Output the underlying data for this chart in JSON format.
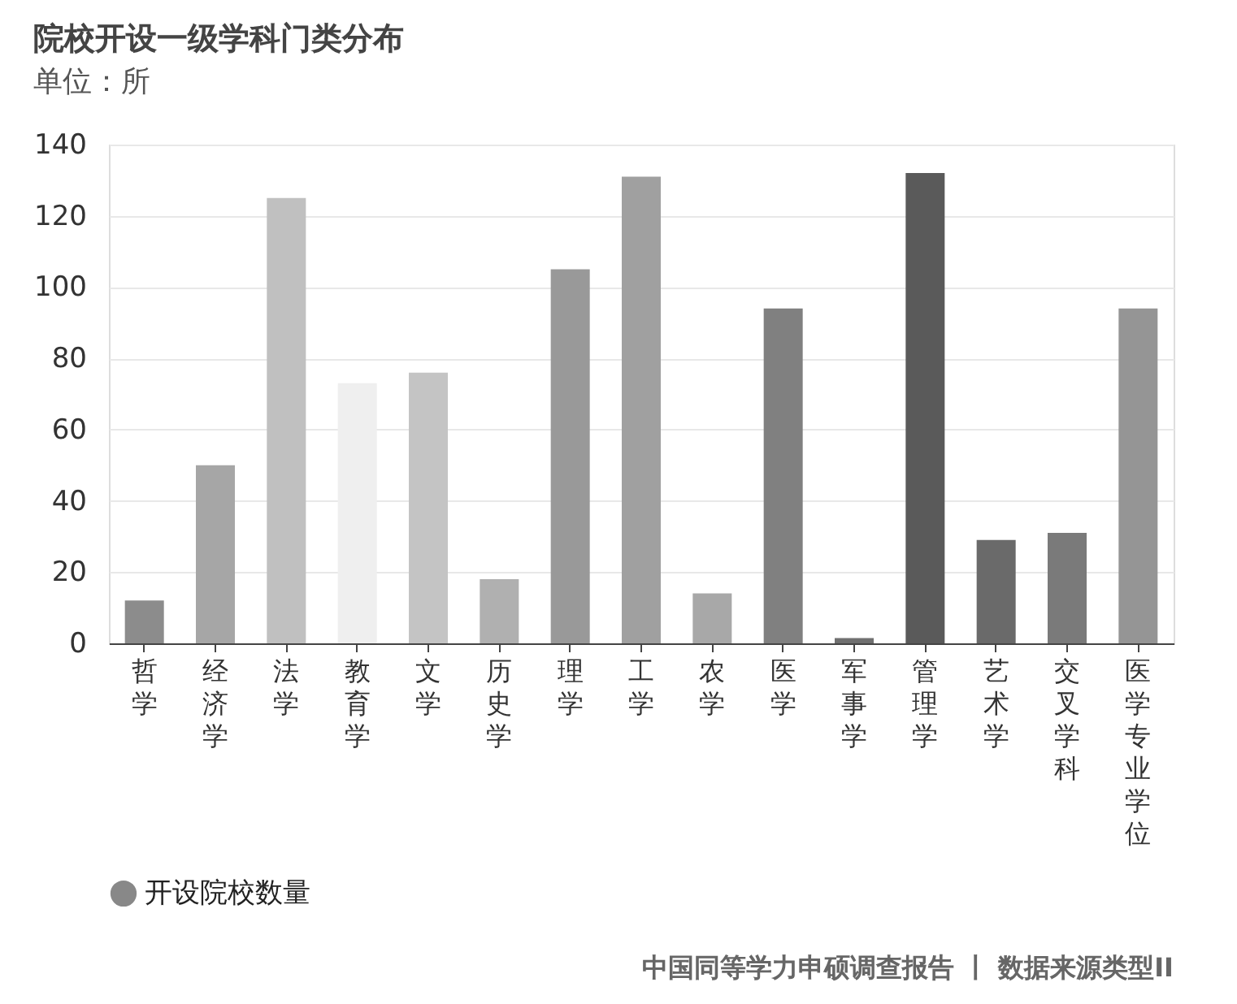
{
  "chart_data": {
    "type": "bar",
    "title": "院校开设一级学科门类分布",
    "subtitle": "单位：所",
    "categories": [
      "哲学",
      "经济学",
      "法学",
      "教育学",
      "文学",
      "历史学",
      "理学",
      "工学",
      "农学",
      "医学",
      "军事学",
      "管理学",
      "艺术学",
      "交叉学科",
      "医学专业学位"
    ],
    "series": [
      {
        "name": "开设院校数量",
        "color": "#888888",
        "values": [
          12,
          50,
          125,
          73,
          76,
          18,
          105,
          131,
          14,
          94,
          1.5,
          132,
          29,
          31,
          94
        ],
        "colors": [
          "#8c8c8c",
          "#a6a6a6",
          "#c0c0c0",
          "#efefef",
          "#c4c4c4",
          "#b0b0b0",
          "#999999",
          "#a0a0a0",
          "#a8a8a8",
          "#808080",
          "#707070",
          "#5a5a5a",
          "#6a6a6a",
          "#7a7a7a",
          "#959595"
        ]
      }
    ],
    "ylim": [
      0,
      140
    ],
    "yticks": [
      0,
      20,
      40,
      60,
      80,
      100,
      120,
      140
    ],
    "grid": "y",
    "legend": "bottom",
    "annotations": [
      "中国同等学力申硕调查报告 丨 数据来源类型II"
    ]
  }
}
